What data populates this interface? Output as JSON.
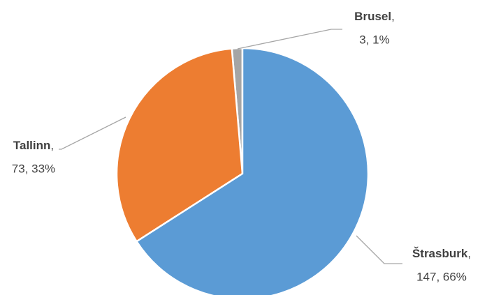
{
  "chart_data": {
    "type": "pie",
    "categories": [
      "Štrasburk",
      "Tallinn",
      "Brusel"
    ],
    "values": [
      147,
      73,
      3
    ],
    "value_labels": [
      "147, 66%",
      "73, 33%",
      "3, 1%"
    ],
    "separator": ",",
    "colors": [
      "#5b9bd5",
      "#ed7d31",
      "#a5a5a5"
    ]
  }
}
